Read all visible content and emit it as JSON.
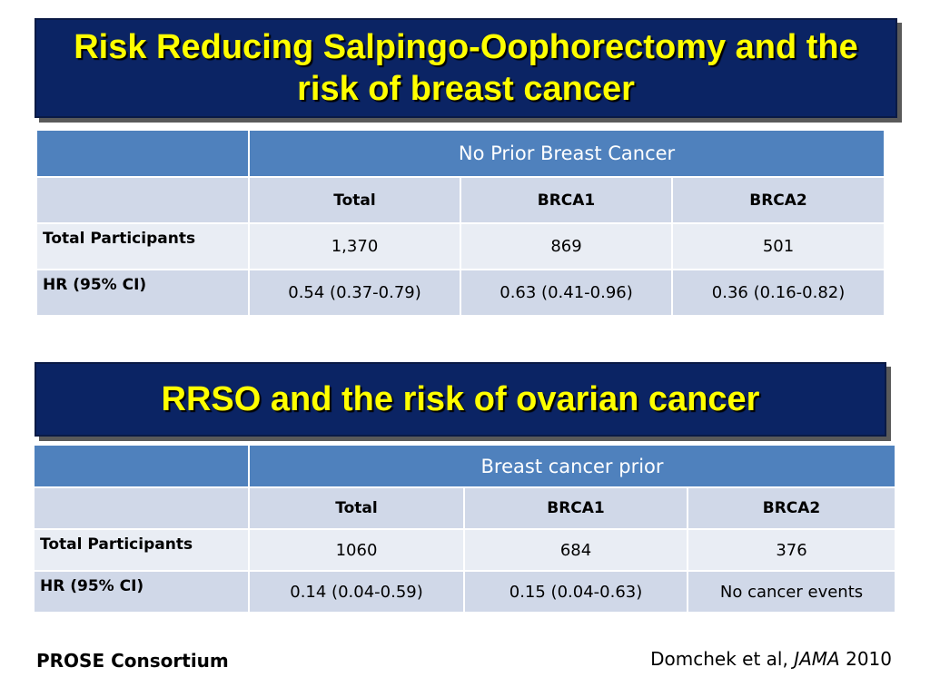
{
  "title1": {
    "line1": "Risk Reducing Salpingo-Oophorectomy and the",
    "line2": "risk of breast cancer"
  },
  "table1": {
    "group_header": "No Prior Breast Cancer",
    "columns": [
      "Total",
      "BRCA1",
      "BRCA2"
    ],
    "rows": [
      {
        "label": "Total Participants",
        "values": [
          "1,370",
          "869",
          "501"
        ]
      },
      {
        "label": "HR (95% CI)",
        "values": [
          "0.54 (0.37-0.79)",
          "0.63 (0.41-0.96)",
          "0.36 (0.16-0.82)"
        ]
      }
    ]
  },
  "title2": {
    "text": "RRSO and the risk of ovarian cancer"
  },
  "table2": {
    "group_header": "Breast cancer prior",
    "columns": [
      "Total",
      "BRCA1",
      "BRCA2"
    ],
    "rows": [
      {
        "label": "Total Participants",
        "values": [
          "1060",
          "684",
          "376"
        ]
      },
      {
        "label": "HR (95% CI)",
        "values": [
          "0.14 (0.04-0.59)",
          "0.15 (0.04-0.63)",
          "No cancer events"
        ]
      }
    ]
  },
  "footer": {
    "consortium": "PROSE Consortium",
    "citation_prefix": "Domchek et al,",
    "citation_journal": "JAMA",
    "citation_year": "2010"
  },
  "colors": {
    "title_bg": "#0b2464",
    "title_text": "#ffff00",
    "header_bg": "#4f81bd",
    "row_shade": "#d0d8e8",
    "row_light": "#e9edf4"
  }
}
